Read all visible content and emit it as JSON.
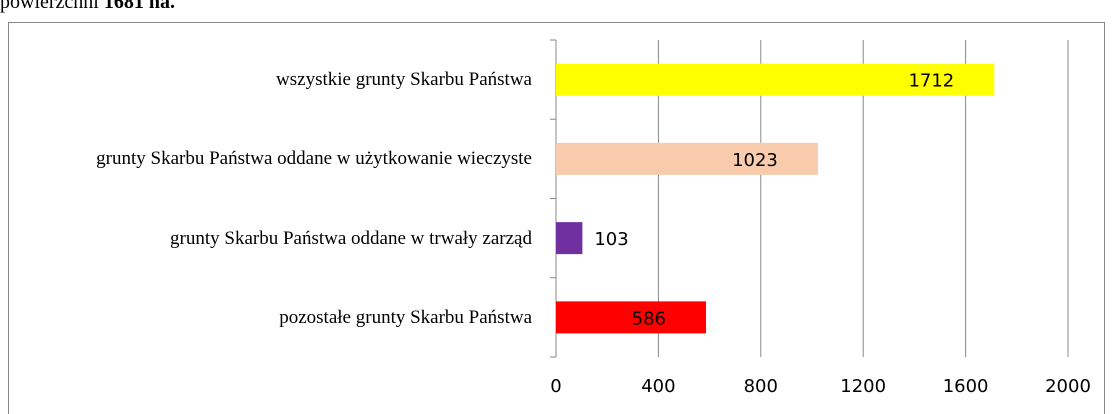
{
  "heading": {
    "text": "powierzchni",
    "bold": "1681 ha."
  },
  "chart_data": {
    "type": "bar",
    "orientation": "horizontal",
    "categories": [
      "wszystkie grunty Skarbu Państwa",
      "grunty Skarbu Państwa oddane w użytkowanie wieczyste",
      "grunty Skarbu Państwa oddane w trwały zarząd",
      "pozostałe grunty Skarbu Państwa"
    ],
    "values": [
      1712,
      1023,
      103,
      586
    ],
    "colors": [
      "#ffff00",
      "#f8cbad",
      "#7030a0",
      "#ff0000"
    ],
    "xlim": [
      0,
      2000
    ],
    "xticks": [
      0,
      400,
      800,
      1200,
      1600,
      2000
    ],
    "grid": true
  }
}
